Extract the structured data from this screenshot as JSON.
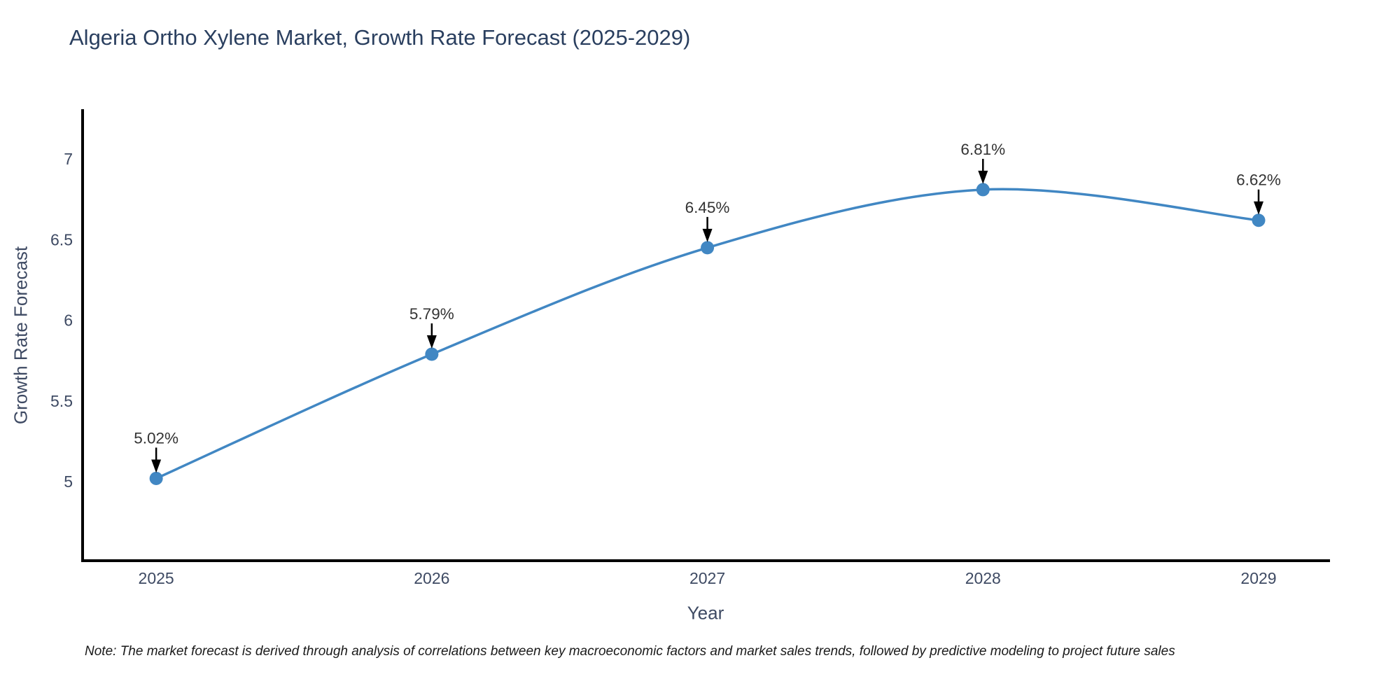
{
  "title": "Algeria Ortho Xylene Market, Growth Rate Forecast (2025-2029)",
  "footnote": "Note: The market forecast is derived through analysis of correlations between key macroeconomic factors and market sales trends, followed by predictive modeling to project future sales",
  "chart_data": {
    "type": "line",
    "title": "Algeria Ortho Xylene Market, Growth Rate Forecast (2025-2029)",
    "xlabel": "Year",
    "ylabel": "Growth Rate Forecast",
    "x": [
      2025,
      2026,
      2027,
      2028,
      2029
    ],
    "values": [
      5.02,
      5.79,
      6.45,
      6.81,
      6.62
    ],
    "point_labels": [
      "5.02%",
      "5.79%",
      "6.45%",
      "6.81%",
      "6.62%"
    ],
    "xtick_labels": [
      "2025",
      "2026",
      "2027",
      "2028",
      "2029"
    ],
    "ytick_values": [
      5,
      5.5,
      6,
      6.5,
      7
    ],
    "ytick_labels": [
      "5",
      "5.5",
      "6",
      "6.5",
      "7"
    ],
    "xlim": [
      2024.733,
      2029.254
    ],
    "ylim": [
      4.51,
      7.3
    ],
    "grid": false,
    "legend": "none",
    "line_shape": "spline",
    "colors": {
      "line": "#4187c3",
      "marker": "#4187c3",
      "arrow": "#000000",
      "annotation_text": "#333333",
      "tick_text": "#3e4a63",
      "axis_line": "#000000",
      "title_text": "#2a3f5f"
    }
  }
}
